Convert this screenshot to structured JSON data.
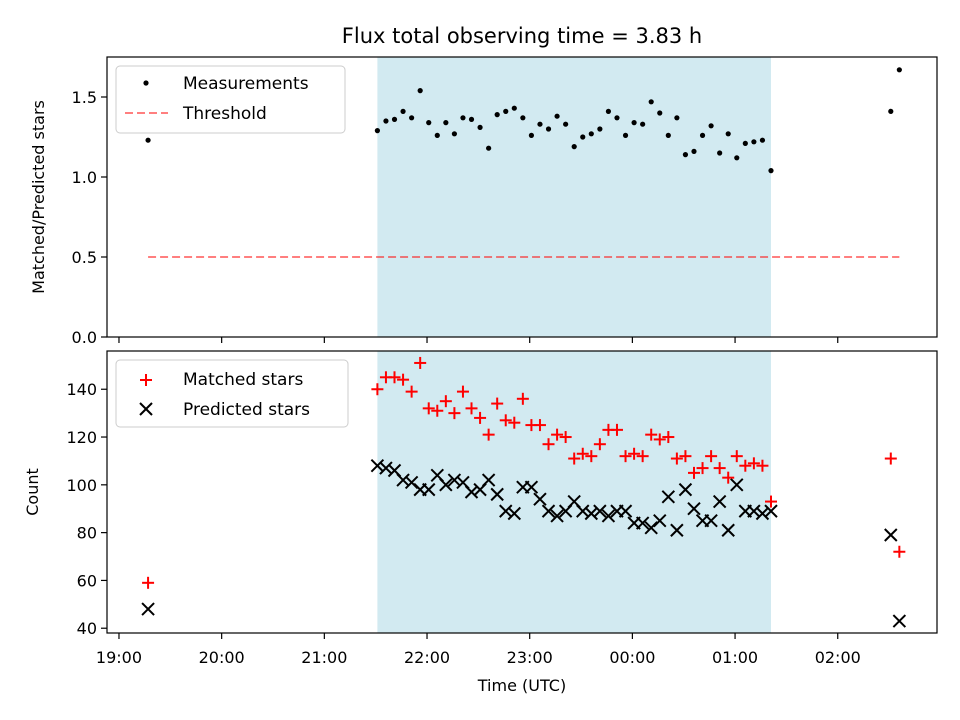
{
  "title": "Flux total observing time = 3.83 h",
  "colors": {
    "shade": "#add8e6",
    "threshold": "#ff0000",
    "matched": "#ff0000",
    "predicted": "#000000",
    "measure": "#000000"
  },
  "chart_data": [
    {
      "type": "scatter",
      "panel": "top",
      "title": "Flux total observing time = 3.83 h",
      "xlabel": "",
      "ylabel": "Matched/Predicted stars",
      "ylim": [
        0,
        1.75
      ],
      "xlim": [
        "18:53",
        "02:58"
      ],
      "yticks": [
        "0.0",
        "0.5",
        "1.0",
        "1.5"
      ],
      "ytick_values": [
        0,
        0.5,
        1.0,
        1.5
      ],
      "shaded_interval": [
        "21:31",
        "01:21"
      ],
      "legend": {
        "position": "top-left",
        "entries": [
          "Measurements",
          "Threshold"
        ]
      },
      "series": [
        {
          "name": "Measurements",
          "marker": "dot",
          "points": [
            [
              "19:17",
              1.23
            ],
            [
              "21:31",
              1.29
            ],
            [
              "21:36",
              1.35
            ],
            [
              "21:41",
              1.36
            ],
            [
              "21:46",
              1.41
            ],
            [
              "21:51",
              1.37
            ],
            [
              "21:56",
              1.54
            ],
            [
              "22:01",
              1.34
            ],
            [
              "22:06",
              1.26
            ],
            [
              "22:11",
              1.34
            ],
            [
              "22:16",
              1.27
            ],
            [
              "22:21",
              1.37
            ],
            [
              "22:26",
              1.36
            ],
            [
              "22:31",
              1.31
            ],
            [
              "22:36",
              1.18
            ],
            [
              "22:41",
              1.39
            ],
            [
              "22:46",
              1.41
            ],
            [
              "22:51",
              1.43
            ],
            [
              "22:56",
              1.37
            ],
            [
              "23:01",
              1.26
            ],
            [
              "23:06",
              1.33
            ],
            [
              "23:11",
              1.3
            ],
            [
              "23:16",
              1.38
            ],
            [
              "23:21",
              1.33
            ],
            [
              "23:26",
              1.19
            ],
            [
              "23:31",
              1.25
            ],
            [
              "23:36",
              1.27
            ],
            [
              "23:41",
              1.3
            ],
            [
              "23:46",
              1.41
            ],
            [
              "23:51",
              1.37
            ],
            [
              "23:56",
              1.26
            ],
            [
              "00:01",
              1.34
            ],
            [
              "00:06",
              1.33
            ],
            [
              "00:11",
              1.47
            ],
            [
              "00:16",
              1.4
            ],
            [
              "00:21",
              1.26
            ],
            [
              "00:26",
              1.37
            ],
            [
              "00:31",
              1.14
            ],
            [
              "00:36",
              1.16
            ],
            [
              "00:41",
              1.26
            ],
            [
              "00:46",
              1.32
            ],
            [
              "00:51",
              1.15
            ],
            [
              "00:56",
              1.27
            ],
            [
              "01:01",
              1.12
            ],
            [
              "01:06",
              1.21
            ],
            [
              "01:11",
              1.22
            ],
            [
              "01:16",
              1.23
            ],
            [
              "01:21",
              1.04
            ],
            [
              "02:31",
              1.41
            ],
            [
              "02:36",
              1.67
            ]
          ]
        },
        {
          "name": "Threshold",
          "style": "dashed-line",
          "points": [
            [
              "19:17",
              0.5
            ],
            [
              "02:36",
              0.5
            ]
          ]
        }
      ]
    },
    {
      "type": "scatter",
      "panel": "bottom",
      "xlabel": "Time (UTC)",
      "ylabel": "Count",
      "ylim": [
        38,
        156
      ],
      "xlim": [
        "18:53",
        "02:58"
      ],
      "yticks": [
        "40",
        "60",
        "80",
        "100",
        "120",
        "140"
      ],
      "ytick_values": [
        40,
        60,
        80,
        100,
        120,
        140
      ],
      "xticks": [
        "19:00",
        "20:00",
        "21:00",
        "22:00",
        "23:00",
        "00:00",
        "01:00",
        "02:00"
      ],
      "shaded_interval": [
        "21:31",
        "01:21"
      ],
      "legend": {
        "position": "top-left",
        "entries": [
          "Matched stars",
          "Predicted stars"
        ]
      },
      "series": [
        {
          "name": "Matched stars",
          "marker": "plus",
          "points": [
            [
              "19:17",
              59
            ],
            [
              "21:31",
              140
            ],
            [
              "21:36",
              145
            ],
            [
              "21:41",
              145
            ],
            [
              "21:46",
              144
            ],
            [
              "21:51",
              139
            ],
            [
              "21:56",
              151
            ],
            [
              "22:01",
              132
            ],
            [
              "22:06",
              131
            ],
            [
              "22:11",
              135
            ],
            [
              "22:16",
              130
            ],
            [
              "22:21",
              139
            ],
            [
              "22:26",
              132
            ],
            [
              "22:31",
              128
            ],
            [
              "22:36",
              121
            ],
            [
              "22:41",
              134
            ],
            [
              "22:46",
              127
            ],
            [
              "22:51",
              126
            ],
            [
              "22:56",
              136
            ],
            [
              "23:01",
              125
            ],
            [
              "23:06",
              125
            ],
            [
              "23:11",
              117
            ],
            [
              "23:16",
              121
            ],
            [
              "23:21",
              120
            ],
            [
              "23:26",
              111
            ],
            [
              "23:31",
              113
            ],
            [
              "23:36",
              112
            ],
            [
              "23:41",
              117
            ],
            [
              "23:46",
              123
            ],
            [
              "23:51",
              123
            ],
            [
              "23:56",
              112
            ],
            [
              "00:01",
              113
            ],
            [
              "00:06",
              112
            ],
            [
              "00:11",
              121
            ],
            [
              "00:16",
              119
            ],
            [
              "00:21",
              120
            ],
            [
              "00:26",
              111
            ],
            [
              "00:31",
              112
            ],
            [
              "00:36",
              105
            ],
            [
              "00:41",
              107
            ],
            [
              "00:46",
              112
            ],
            [
              "00:51",
              107
            ],
            [
              "00:56",
              103
            ],
            [
              "01:01",
              112
            ],
            [
              "01:06",
              108
            ],
            [
              "01:11",
              109
            ],
            [
              "01:16",
              108
            ],
            [
              "01:21",
              93
            ],
            [
              "02:31",
              111
            ],
            [
              "02:36",
              72
            ]
          ]
        },
        {
          "name": "Predicted stars",
          "marker": "x",
          "points": [
            [
              "19:17",
              48
            ],
            [
              "21:31",
              108
            ],
            [
              "21:36",
              107
            ],
            [
              "21:41",
              106
            ],
            [
              "21:46",
              102
            ],
            [
              "21:51",
              101
            ],
            [
              "21:56",
              98
            ],
            [
              "22:01",
              98
            ],
            [
              "22:06",
              104
            ],
            [
              "22:11",
              100
            ],
            [
              "22:16",
              102
            ],
            [
              "22:21",
              101
            ],
            [
              "22:26",
              97
            ],
            [
              "22:31",
              98
            ],
            [
              "22:36",
              102
            ],
            [
              "22:41",
              96
            ],
            [
              "22:46",
              89
            ],
            [
              "22:51",
              88
            ],
            [
              "22:56",
              99
            ],
            [
              "23:01",
              99
            ],
            [
              "23:06",
              94
            ],
            [
              "23:11",
              89
            ],
            [
              "23:16",
              87
            ],
            [
              "23:21",
              89
            ],
            [
              "23:26",
              93
            ],
            [
              "23:31",
              89
            ],
            [
              "23:36",
              88
            ],
            [
              "23:41",
              89
            ],
            [
              "23:46",
              87
            ],
            [
              "23:51",
              89
            ],
            [
              "23:56",
              89
            ],
            [
              "00:01",
              84
            ],
            [
              "00:06",
              84
            ],
            [
              "00:11",
              82
            ],
            [
              "00:16",
              85
            ],
            [
              "00:21",
              95
            ],
            [
              "00:26",
              81
            ],
            [
              "00:31",
              98
            ],
            [
              "00:36",
              90
            ],
            [
              "00:41",
              85
            ],
            [
              "00:46",
              85
            ],
            [
              "00:51",
              93
            ],
            [
              "00:56",
              81
            ],
            [
              "01:01",
              100
            ],
            [
              "01:06",
              89
            ],
            [
              "01:11",
              89
            ],
            [
              "01:16",
              88
            ],
            [
              "01:21",
              89
            ],
            [
              "02:31",
              79
            ],
            [
              "02:36",
              43
            ]
          ]
        }
      ]
    }
  ]
}
